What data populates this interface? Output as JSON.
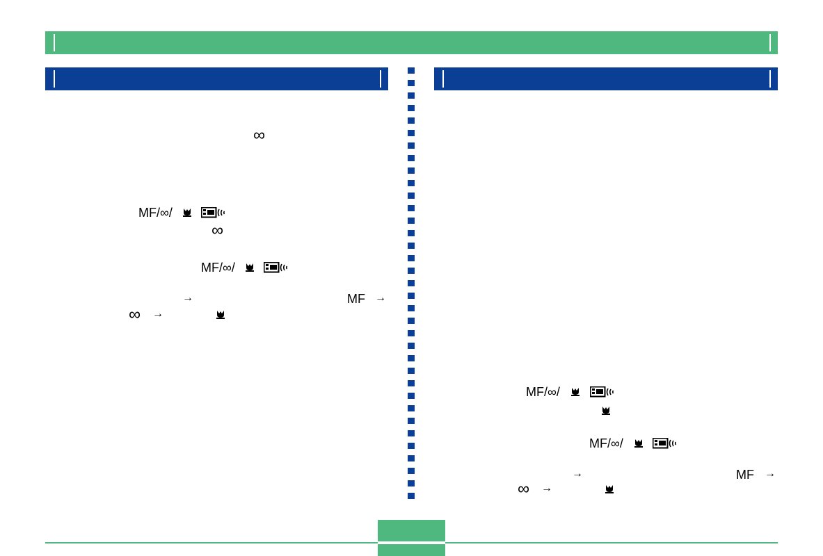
{
  "colors": {
    "header_green": "#4fb87f",
    "section_blue": "#0b3f96",
    "divider_blue": "#0b3f96",
    "text": "#000000"
  },
  "symbols": {
    "infinity": "∞",
    "mf": "MF",
    "mf_button_prefix": "MF/∞/",
    "arrow": "→"
  },
  "icons": {
    "macro": "macro-flower-icon",
    "display": "display-button-icon",
    "wave": "wave-icon"
  }
}
